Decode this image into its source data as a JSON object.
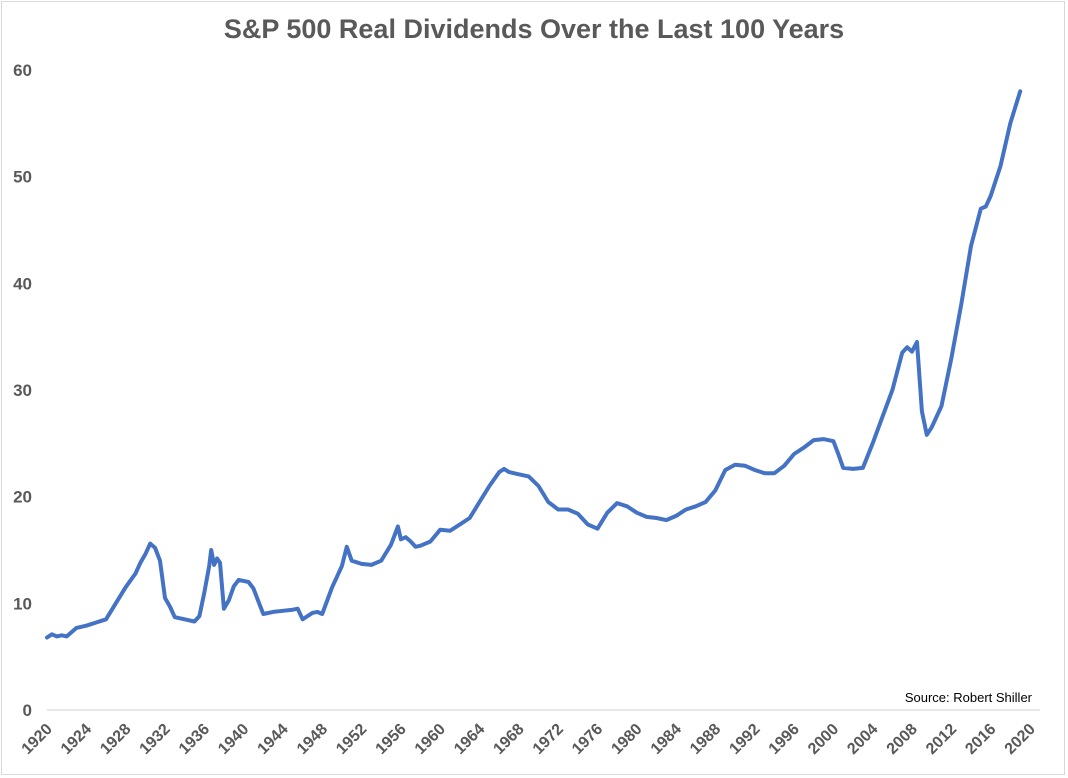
{
  "chart_data": {
    "type": "line",
    "title": "S&P 500 Real Dividends Over the Last 100 Years",
    "xlabel": "",
    "ylabel": "",
    "xlim": [
      1920,
      2020
    ],
    "ylim": [
      0,
      60
    ],
    "grid": false,
    "legend": "none",
    "line_color": "#4472C4",
    "y_ticks": [
      "0",
      "10",
      "20",
      "30",
      "40",
      "50",
      "60"
    ],
    "y_tick_values": [
      0,
      10,
      20,
      30,
      40,
      50,
      60
    ],
    "x_ticks": [
      "1920",
      "1924",
      "1928",
      "1932",
      "1936",
      "1940",
      "1944",
      "1948",
      "1952",
      "1956",
      "1960",
      "1964",
      "1968",
      "1972",
      "1976",
      "1980",
      "1984",
      "1988",
      "1992",
      "1996",
      "2000",
      "2004",
      "2008",
      "2012",
      "2016",
      "2020"
    ],
    "x_tick_values": [
      1920,
      1924,
      1928,
      1932,
      1936,
      1940,
      1944,
      1948,
      1952,
      1956,
      1960,
      1964,
      1968,
      1972,
      1976,
      1980,
      1984,
      1988,
      1992,
      1996,
      2000,
      2004,
      2008,
      2012,
      2016,
      2020
    ],
    "annotation": "Source: Robert Shiller",
    "series": [
      {
        "name": "S&P 500 Real Dividends",
        "x": [
          1920,
          1920.5,
          1921,
          1921.5,
          1922,
          1922.5,
          1923,
          1924,
          1925,
          1926,
          1927,
          1928,
          1929,
          1929.5,
          1930,
          1930.5,
          1931,
          1931.5,
          1932,
          1932.5,
          1933,
          1934,
          1935,
          1935.5,
          1936,
          1936.5,
          1936.7,
          1937,
          1937.3,
          1937.6,
          1938,
          1938.5,
          1939,
          1939.5,
          1940,
          1940.5,
          1941,
          1941.5,
          1942,
          1943,
          1944,
          1945,
          1945.5,
          1946,
          1947,
          1947.5,
          1948,
          1949,
          1949.5,
          1950,
          1950.5,
          1951,
          1952,
          1953,
          1954,
          1955,
          1955.7,
          1956,
          1956.5,
          1957,
          1957.5,
          1958,
          1959,
          1960,
          1961,
          1962,
          1963,
          1964,
          1965,
          1966,
          1966.5,
          1967,
          1968,
          1969,
          1970,
          1971,
          1972,
          1973,
          1974,
          1975,
          1976,
          1977,
          1978,
          1979,
          1980,
          1981,
          1982,
          1983,
          1984,
          1985,
          1986,
          1987,
          1988,
          1989,
          1990,
          1991,
          1992,
          1993,
          1994,
          1995,
          1996,
          1997,
          1998,
          1999,
          2000,
          2000.5,
          2001,
          2002,
          2003,
          2004,
          2005,
          2006,
          2007,
          2007.5,
          2008,
          2008.5,
          2009,
          2009.5,
          2010,
          2011,
          2012,
          2013,
          2014,
          2015,
          2015.5,
          2016,
          2017,
          2018,
          2019
        ],
        "values": [
          6.8,
          7.1,
          6.9,
          7.0,
          6.9,
          7.3,
          7.7,
          7.9,
          8.2,
          8.5,
          10.0,
          11.5,
          12.8,
          13.8,
          14.6,
          15.6,
          15.2,
          14.0,
          10.5,
          9.7,
          8.7,
          8.5,
          8.3,
          8.8,
          11.0,
          13.5,
          15.0,
          13.6,
          14.2,
          13.8,
          9.5,
          10.3,
          11.6,
          12.2,
          12.1,
          12.0,
          11.4,
          10.2,
          9.0,
          9.2,
          9.3,
          9.4,
          9.5,
          8.5,
          9.1,
          9.2,
          9.0,
          11.5,
          12.5,
          13.5,
          15.3,
          14.0,
          13.7,
          13.6,
          14.0,
          15.5,
          17.2,
          16.0,
          16.2,
          15.8,
          15.3,
          15.4,
          15.8,
          16.9,
          16.8,
          17.4,
          18.0,
          19.5,
          21.0,
          22.3,
          22.6,
          22.3,
          22.1,
          21.9,
          21.0,
          19.5,
          18.8,
          18.8,
          18.4,
          17.4,
          17.0,
          18.5,
          19.4,
          19.1,
          18.5,
          18.1,
          18.0,
          17.8,
          18.2,
          18.8,
          19.1,
          19.5,
          20.6,
          22.5,
          23.0,
          22.9,
          22.5,
          22.2,
          22.2,
          22.9,
          24.0,
          24.6,
          25.3,
          25.4,
          25.2,
          24.0,
          22.7,
          22.6,
          22.7,
          25.0,
          27.5,
          30.0,
          33.5,
          34.0,
          33.6,
          34.5,
          28.0,
          25.8,
          26.5,
          28.5,
          33.0,
          38.0,
          43.5,
          47.0,
          47.2,
          48.2,
          51.0,
          55.0,
          58.0
        ]
      }
    ]
  }
}
